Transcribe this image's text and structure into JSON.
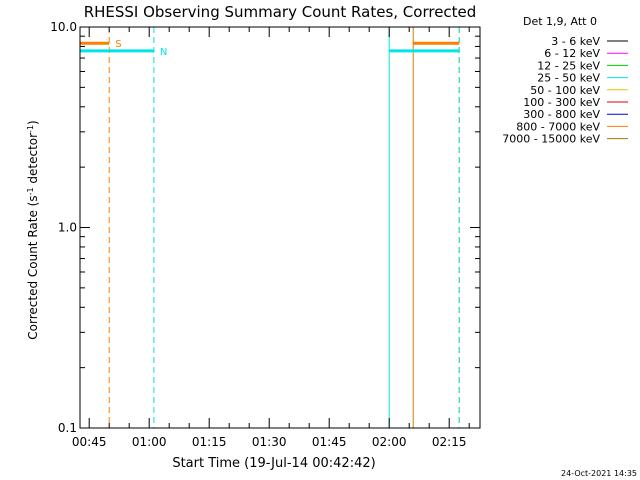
{
  "chart_data": {
    "type": "line",
    "title": "RHESSI Observing Summary Count Rates, Corrected",
    "xlabel": "Start Time (19-Jul-14 00:42:42)",
    "ylabel_main": "Corrected Count Rate (s",
    "ylabel_sup1": "-1",
    "ylabel_mid": " detector",
    "ylabel_sup2": "-1",
    "ylabel_end": ")",
    "y_scale": "log",
    "ylim": [
      0.1,
      10.0
    ],
    "x_range_minutes": [
      "00:42:42",
      "02:22:42"
    ],
    "x_ticks": [
      {
        "label": "00:45",
        "min": 45
      },
      {
        "label": "01:00",
        "min": 60
      },
      {
        "label": "01:15",
        "min": 75
      },
      {
        "label": "01:30",
        "min": 90
      },
      {
        "label": "01:45",
        "min": 105
      },
      {
        "label": "02:00",
        "min": 120
      },
      {
        "label": "02:15",
        "min": 135
      }
    ],
    "y_ticks": [
      {
        "label": "10.0",
        "value": 10.0
      },
      {
        "label": "1.0",
        "value": 1.0
      },
      {
        "label": "0.1",
        "value": 0.1
      }
    ],
    "legend": {
      "placement": "right",
      "header": "Det 1,9, Att 0",
      "entries": [
        {
          "name": "3 - 6 keV",
          "color": "#000000"
        },
        {
          "name": "6 - 12 keV",
          "color": "#ff00ff"
        },
        {
          "name": "12 - 25 keV",
          "color": "#00c800"
        },
        {
          "name": "25 - 50 keV",
          "color": "#00e5e5"
        },
        {
          "name": "50 - 100 keV",
          "color": "#e5c800"
        },
        {
          "name": "100 - 300 keV",
          "color": "#e50000"
        },
        {
          "name": "300 - 800 keV",
          "color": "#0000e5"
        },
        {
          "name": "800 - 7000 keV",
          "color": "#ff8000"
        },
        {
          "name": "7000 - 15000 keV",
          "color": "#a07800"
        }
      ]
    },
    "bands": [
      {
        "label": "S",
        "color": "#ff7f00",
        "value": 8.3,
        "segments": [
          [
            "00:42:42",
            "00:50:00"
          ],
          [
            "02:06:00",
            "02:17:30"
          ]
        ]
      },
      {
        "label": "N",
        "color": "#00e5e5",
        "value": 7.6,
        "segments": [
          [
            "00:42:42",
            "01:01:10"
          ],
          [
            "02:00:00",
            "02:17:30"
          ]
        ]
      }
    ],
    "vlines": [
      {
        "time": "00:42:42",
        "color": "#00e5e5",
        "style": "solid"
      },
      {
        "time": "00:50:00",
        "color": "#ff7f00",
        "style": "dashed"
      },
      {
        "time": "01:01:10",
        "color": "#00e5e5",
        "style": "dashed"
      },
      {
        "time": "02:00:00",
        "color": "#00e5e5",
        "style": "solid"
      },
      {
        "time": "02:06:00",
        "color": "#d08000",
        "style": "solid"
      },
      {
        "time": "02:17:30",
        "color": "#ff7f00",
        "style": "dashed"
      },
      {
        "time": "02:17:30",
        "color": "#00e5e5",
        "style": "dashed"
      }
    ],
    "footer": "24-Oct-2021 14:35"
  }
}
